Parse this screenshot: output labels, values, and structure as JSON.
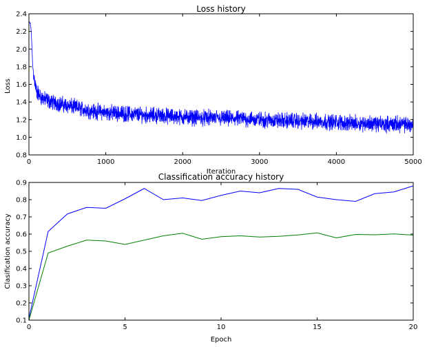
{
  "chart_data": [
    {
      "type": "line",
      "title": "Loss history",
      "xlabel": "Iteration",
      "ylabel": "Loss",
      "xlim": [
        0,
        5000
      ],
      "ylim": [
        0.8,
        2.4
      ],
      "xticks": [
        0,
        1000,
        2000,
        3000,
        4000,
        5000
      ],
      "xtick_labels": [
        "0",
        "1000",
        "2000",
        "3000",
        "4000",
        "5000"
      ],
      "yticks": [
        0.8,
        1.0,
        1.2,
        1.4,
        1.6,
        1.8,
        2.0,
        2.2,
        2.4
      ],
      "ytick_labels": [
        "0.8",
        "1.0",
        "1.2",
        "1.4",
        "1.6",
        "1.8",
        "2.0",
        "2.2",
        "2.4"
      ],
      "grid": false,
      "color": "#0000ff",
      "series": [
        {
          "x": [
            0,
            10,
            20,
            30,
            40,
            50,
            75,
            100,
            150,
            200,
            300,
            400,
            500,
            600,
            700,
            800,
            900,
            1000,
            1200,
            1400,
            1600,
            1800,
            2000,
            2200,
            2400,
            2600,
            2800,
            3000,
            3200,
            3400,
            3600,
            3800,
            4000,
            4200,
            4400,
            4600,
            4800,
            5000
          ],
          "values": [
            2.3,
            2.3,
            2.28,
            2.2,
            2.0,
            1.8,
            1.62,
            1.52,
            1.46,
            1.43,
            1.4,
            1.38,
            1.36,
            1.34,
            1.32,
            1.3,
            1.29,
            1.28,
            1.27,
            1.26,
            1.25,
            1.24,
            1.23,
            1.22,
            1.22,
            1.21,
            1.21,
            1.2,
            1.19,
            1.19,
            1.18,
            1.18,
            1.17,
            1.16,
            1.16,
            1.15,
            1.15,
            1.14
          ]
        }
      ]
    },
    {
      "type": "line",
      "title": "Classification accuracy history",
      "xlabel": "Epoch",
      "ylabel": "Clasification accuracy",
      "xlim": [
        0,
        20
      ],
      "ylim": [
        0.1,
        0.9
      ],
      "xticks": [
        0,
        5,
        10,
        15,
        20
      ],
      "xtick_labels": [
        "0",
        "5",
        "10",
        "15",
        "20"
      ],
      "yticks": [
        0.1,
        0.2,
        0.3,
        0.4,
        0.5,
        0.6,
        0.7,
        0.8,
        0.9
      ],
      "ytick_labels": [
        "0.1",
        "0.2",
        "0.3",
        "0.4",
        "0.5",
        "0.6",
        "0.7",
        "0.8",
        "0.9"
      ],
      "grid": false,
      "x": [
        0,
        1,
        2,
        3,
        4,
        5,
        6,
        7,
        8,
        9,
        10,
        11,
        12,
        13,
        14,
        15,
        16,
        17,
        18,
        19,
        20
      ],
      "series": [
        {
          "color": "#0000ff",
          "values": [
            0.11,
            0.615,
            0.717,
            0.755,
            0.75,
            0.805,
            0.865,
            0.8,
            0.81,
            0.795,
            0.825,
            0.85,
            0.84,
            0.865,
            0.86,
            0.815,
            0.8,
            0.79,
            0.835,
            0.845,
            0.88
          ]
        },
        {
          "color": "#008000",
          "values": [
            0.1,
            0.49,
            0.53,
            0.565,
            0.56,
            0.54,
            0.565,
            0.59,
            0.605,
            0.57,
            0.585,
            0.59,
            0.583,
            0.587,
            0.595,
            0.607,
            0.578,
            0.598,
            0.596,
            0.601,
            0.594
          ]
        }
      ]
    }
  ]
}
